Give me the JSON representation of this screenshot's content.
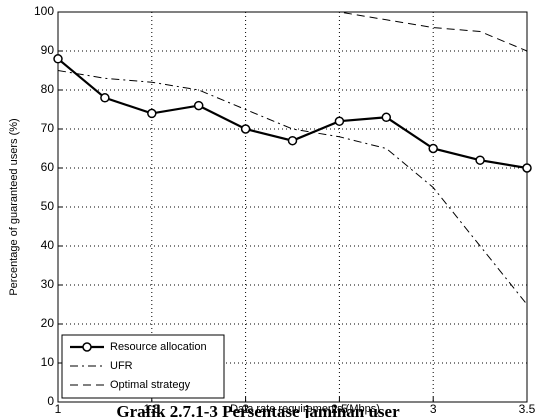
{
  "chart_data": {
    "type": "line",
    "xlabel": "Data rate requirements (Mbps)",
    "ylabel": "Percentage of guaranteed users (%)",
    "x": [
      1,
      1.25,
      1.5,
      1.75,
      2,
      2.25,
      2.5,
      2.75,
      3,
      3.25,
      3.5
    ],
    "series": [
      {
        "name": "Resource allocation",
        "color": "#000000",
        "style": "solid",
        "marker": "o",
        "values": [
          88,
          78,
          74,
          76,
          70,
          67,
          72,
          73,
          65,
          62,
          60
        ]
      },
      {
        "name": "UFR",
        "color": "#000000",
        "style": "dashdot",
        "values": [
          85,
          83,
          82,
          80,
          75,
          70,
          68,
          65,
          55,
          40,
          25
        ]
      },
      {
        "name": "Optimal strategy",
        "color": "#000000",
        "style": "dashed",
        "values": [
          100,
          100,
          100,
          100,
          100,
          100,
          100,
          98,
          96,
          95,
          90
        ]
      }
    ],
    "xlim": [
      1,
      3.5
    ],
    "xticks": [
      1,
      1.5,
      2,
      2.5,
      3,
      3.5
    ],
    "ylim": [
      0,
      100
    ],
    "yticks": [
      0,
      10,
      20,
      30,
      40,
      50,
      60,
      70,
      80,
      90,
      100
    ],
    "grid": true,
    "legend": "lower left"
  },
  "caption": "Grafik 2.7.1-3 Persentase jaminan user"
}
